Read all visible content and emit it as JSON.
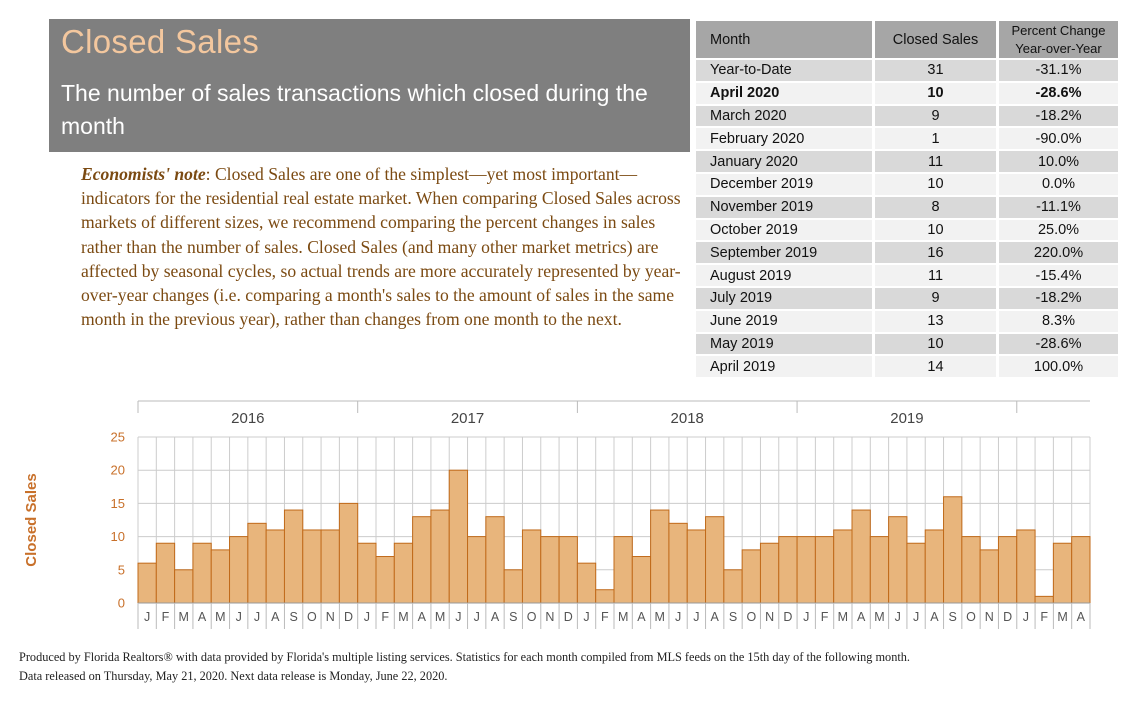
{
  "header": {
    "title": "Closed Sales",
    "subtitle": "The number of sales transactions which closed during the month"
  },
  "note": {
    "label": "Economists' note",
    "text": ":  Closed Sales are one of the simplest—yet most important—indicators for the residential real estate market.  When comparing Closed Sales across markets of different sizes, we recommend comparing the percent changes in sales rather than the number of sales.  Closed Sales (and many other market metrics) are affected by seasonal cycles, so actual trends are more accurately represented by year-over-year changes (i.e. comparing a month's sales to the amount of sales in the same month in the previous year), rather than changes from one month to the next."
  },
  "table": {
    "headers": [
      "Month",
      "Closed Sales",
      "Percent Change",
      "Year-over-Year"
    ],
    "rows": [
      {
        "month": "Year-to-Date",
        "sales": "31",
        "pct": "-31.1%"
      },
      {
        "month": "April 2020",
        "sales": "10",
        "pct": "-28.6%"
      },
      {
        "month": "March 2020",
        "sales": "9",
        "pct": "-18.2%"
      },
      {
        "month": "February 2020",
        "sales": "1",
        "pct": "-90.0%"
      },
      {
        "month": "January 2020",
        "sales": "11",
        "pct": "10.0%"
      },
      {
        "month": "December 2019",
        "sales": "10",
        "pct": "0.0%"
      },
      {
        "month": "November 2019",
        "sales": "8",
        "pct": "-11.1%"
      },
      {
        "month": "October 2019",
        "sales": "10",
        "pct": "25.0%"
      },
      {
        "month": "September 2019",
        "sales": "16",
        "pct": "220.0%"
      },
      {
        "month": "August 2019",
        "sales": "11",
        "pct": "-15.4%"
      },
      {
        "month": "July 2019",
        "sales": "9",
        "pct": "-18.2%"
      },
      {
        "month": "June 2019",
        "sales": "13",
        "pct": "8.3%"
      },
      {
        "month": "May 2019",
        "sales": "10",
        "pct": "-28.6%"
      },
      {
        "month": "April 2019",
        "sales": "14",
        "pct": "100.0%"
      }
    ]
  },
  "chart_data": {
    "type": "bar",
    "ylabel": "Closed Sales",
    "ylim": [
      0,
      25
    ],
    "yticks": [
      0,
      5,
      10,
      15,
      20,
      25
    ],
    "years": [
      "2016",
      "2017",
      "2018",
      "2019"
    ],
    "categories": [
      "J",
      "F",
      "M",
      "A",
      "M",
      "J",
      "J",
      "A",
      "S",
      "O",
      "N",
      "D",
      "J",
      "F",
      "M",
      "A",
      "M",
      "J",
      "J",
      "A",
      "S",
      "O",
      "N",
      "D",
      "J",
      "F",
      "M",
      "A",
      "M",
      "J",
      "J",
      "A",
      "S",
      "O",
      "N",
      "D",
      "J",
      "F",
      "M",
      "A",
      "M",
      "J",
      "J",
      "A",
      "S",
      "O",
      "N",
      "D",
      "J",
      "F",
      "M",
      "A"
    ],
    "values": [
      6,
      9,
      5,
      9,
      8,
      10,
      12,
      11,
      14,
      11,
      11,
      15,
      9,
      7,
      9,
      13,
      14,
      20,
      10,
      13,
      5,
      11,
      10,
      10,
      6,
      2,
      10,
      7,
      14,
      12,
      11,
      13,
      5,
      8,
      9,
      10,
      10,
      10,
      11,
      14,
      10,
      13,
      9,
      11,
      16,
      10,
      8,
      10,
      11,
      1,
      9,
      10
    ],
    "colors": {
      "bar": "#e8b57c",
      "bar_edge": "#c06a1a",
      "grid": "#cccccc",
      "axis_label": "#c8702a",
      "tick": "#555555"
    }
  },
  "footer": {
    "line1": "Produced by Florida Realtors® with data provided by Florida's multiple listing services. Statistics for each month compiled from MLS feeds on the 15th day of the following month.",
    "line2": "Data released on Thursday, May 21, 2020. Next data release is Monday, June 22, 2020."
  }
}
